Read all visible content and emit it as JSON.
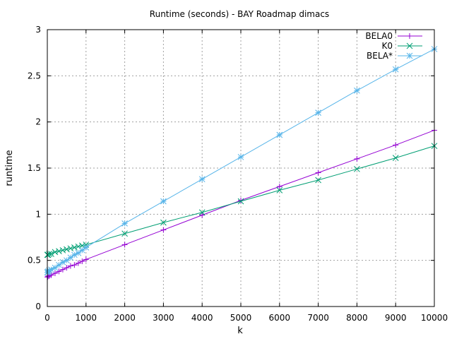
{
  "chart_data": {
    "type": "line",
    "title": "Runtime (seconds) - BAY Roadmap dimacs",
    "xlabel": "k",
    "ylabel": "runtime",
    "xlim": [
      0,
      10000
    ],
    "ylim": [
      0,
      3
    ],
    "xticks": [
      0,
      1000,
      2000,
      3000,
      4000,
      5000,
      6000,
      7000,
      8000,
      9000,
      10000
    ],
    "yticks": [
      0,
      0.5,
      1,
      1.5,
      2,
      2.5,
      3
    ],
    "xtick_labels": [
      "0",
      "1000",
      "2000",
      "3000",
      "4000",
      "5000",
      "6000",
      "7000",
      "8000",
      "9000",
      "10000"
    ],
    "ytick_labels": [
      "0",
      "0.5",
      "1",
      "1.5",
      "2",
      "2.5",
      "3"
    ],
    "grid": true,
    "legend_position": "top-right",
    "series": [
      {
        "name": "BELA0",
        "color": "#9400d3",
        "marker": "plus",
        "x": [
          1,
          10,
          20,
          50,
          100,
          200,
          300,
          400,
          500,
          600,
          700,
          800,
          900,
          1000,
          2000,
          3000,
          4000,
          5000,
          6000,
          7000,
          8000,
          9000,
          10000
        ],
        "y": [
          0.32,
          0.32,
          0.33,
          0.33,
          0.34,
          0.36,
          0.38,
          0.4,
          0.42,
          0.44,
          0.45,
          0.47,
          0.49,
          0.51,
          0.67,
          0.83,
          0.99,
          1.15,
          1.3,
          1.45,
          1.6,
          1.75,
          1.91
        ]
      },
      {
        "name": "K0",
        "color": "#009e73",
        "marker": "cross",
        "x": [
          1,
          10,
          20,
          50,
          100,
          200,
          300,
          400,
          500,
          600,
          700,
          800,
          900,
          1000,
          2000,
          3000,
          4000,
          5000,
          6000,
          7000,
          8000,
          9000,
          10000
        ],
        "y": [
          0.56,
          0.56,
          0.56,
          0.57,
          0.57,
          0.59,
          0.6,
          0.61,
          0.62,
          0.63,
          0.64,
          0.65,
          0.66,
          0.67,
          0.79,
          0.91,
          1.02,
          1.14,
          1.26,
          1.37,
          1.49,
          1.61,
          1.74
        ]
      },
      {
        "name": "BELA*",
        "color": "#56b4e9",
        "marker": "star",
        "x": [
          1,
          10,
          20,
          50,
          100,
          200,
          300,
          400,
          500,
          600,
          700,
          800,
          900,
          1000,
          2000,
          3000,
          4000,
          5000,
          6000,
          7000,
          8000,
          9000,
          10000
        ],
        "y": [
          0.37,
          0.37,
          0.38,
          0.39,
          0.4,
          0.42,
          0.45,
          0.48,
          0.5,
          0.53,
          0.56,
          0.58,
          0.61,
          0.64,
          0.9,
          1.14,
          1.38,
          1.62,
          1.86,
          2.1,
          2.34,
          2.57,
          2.79
        ]
      }
    ]
  }
}
